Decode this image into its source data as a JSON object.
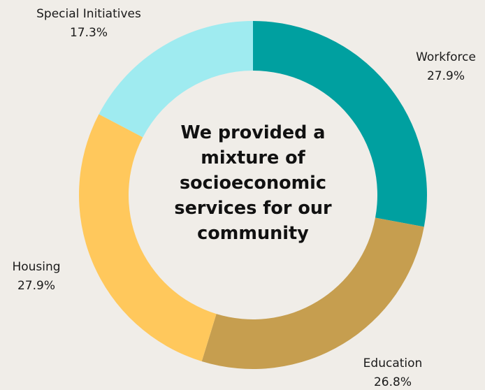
{
  "chart_data": {
    "type": "pie",
    "donut": true,
    "center_text": "We provided a\nmixture of\nsocioeconomic\nservices for our\ncommunity",
    "slices": [
      {
        "label": "Workforce",
        "percent_label": "27.9%",
        "value": 27.9,
        "color": "#00a0a0"
      },
      {
        "label": "Education",
        "percent_label": "26.8%",
        "value": 26.8,
        "color": "#c69e4f"
      },
      {
        "label": "Housing",
        "percent_label": "27.9%",
        "value": 27.9,
        "color": "#ffc85c"
      },
      {
        "label": "Special Initiatives",
        "percent_label": "17.3%",
        "value": 17.3,
        "color": "#9febf0"
      }
    ],
    "start_angle": "top",
    "direction": "clockwise"
  }
}
